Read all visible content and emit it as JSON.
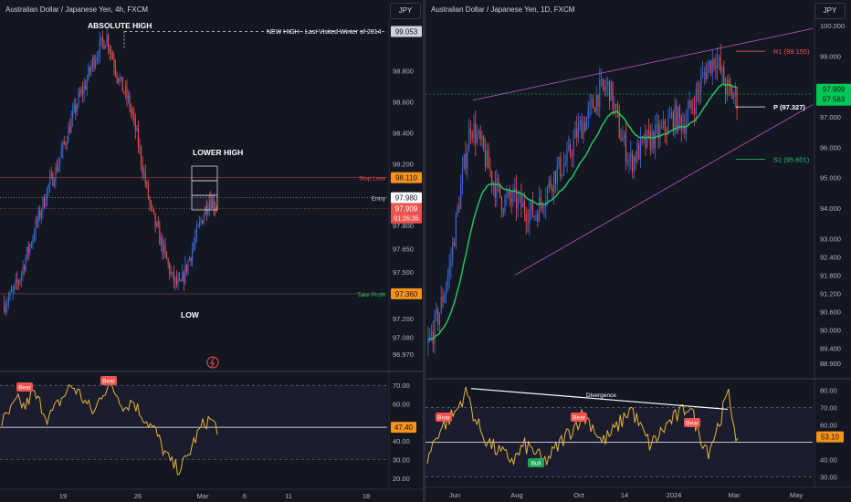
{
  "colors": {
    "bull": "#3f6ee0",
    "bear": "#ef5350",
    "ema": "#22c55e",
    "rsi": "#e5b53a",
    "wedge": "#b04fb7",
    "bg": "#131722"
  },
  "left": {
    "title": "Australian Dollar / Japanese Yen, 4h, FXCM",
    "currency_btn": "JPY",
    "price_ticks": [
      "99.053",
      "98.800",
      "98.600",
      "98.400",
      "98.200",
      "98.000",
      "97.800",
      "97.650",
      "97.500",
      "97.350",
      "97.200",
      "97.080",
      "96.970"
    ],
    "time_ticks": [
      "19",
      "26",
      "Mar",
      "6",
      "11",
      "18"
    ],
    "rsi_ticks": [
      "70.00",
      "60.00",
      "40.00",
      "30.00",
      "20.00"
    ],
    "rsi_value": "47.40",
    "annotations": {
      "absolute_high": "ABSOLUTE HIGH",
      "new_high": "NEW HIGH - Last Visited Winter of 2014",
      "lower_high": "LOWER HIGH",
      "low": "LOW"
    },
    "levels": {
      "high": {
        "label": "99.053"
      },
      "stop_loss": {
        "text": "Stop Loss",
        "label": "98.110"
      },
      "entry": {
        "text": "Entry",
        "label": "97.980"
      },
      "current": {
        "label": "97.909",
        "countdown": "01:26:35"
      },
      "take_profit": {
        "text": "Take Profit",
        "label": "97.360"
      }
    },
    "bear_labels": [
      "Bear",
      "Bear"
    ]
  },
  "right": {
    "title": "Australian Dollar / Japanese Yen, 1D, FXCM",
    "currency_btn": "JPY",
    "price_ticks": [
      "100.000",
      "99.000",
      "98.000",
      "97.000",
      "96.000",
      "95.000",
      "94.000",
      "93.000",
      "92.400",
      "91.800",
      "91.200",
      "90.600",
      "90.000",
      "89.400",
      "88.900"
    ],
    "time_ticks": [
      "Jun",
      "Aug",
      "Oct",
      "14",
      "2024",
      "Mar",
      "May"
    ],
    "rsi_ticks": [
      "80.00",
      "70.00",
      "60.00",
      "50.00",
      "40.00",
      "30.00"
    ],
    "rsi_value": "53.10",
    "pivots": {
      "r1": "R1 (99.155)",
      "p": "P (97.327)",
      "s1": "S1 (95.601)"
    },
    "price_labels": {
      "top": "97.909",
      "bottom": "97.583"
    },
    "divergence": "Divergence",
    "bear_labels": [
      "Bear",
      "Bear",
      "Bear"
    ],
    "bull_label": "Bull"
  },
  "chart_data": [
    {
      "type": "candlestick",
      "title": "Australian Dollar / Japanese Yen, 4h, FXCM",
      "timeframe": "4h",
      "x_ticks": [
        "19",
        "26",
        "Mar",
        "6",
        "11",
        "18"
      ],
      "ylim": [
        96.9,
        99.15
      ],
      "levels": {
        "absolute_high": 99.053,
        "stop_loss": 98.11,
        "entry": 97.98,
        "last": 97.909,
        "take_profit": 97.36
      },
      "close_path": [
        97.3,
        97.35,
        97.45,
        97.6,
        97.75,
        97.9,
        98.05,
        98.15,
        98.3,
        98.45,
        98.6,
        98.7,
        98.85,
        98.95,
        99.02,
        98.85,
        98.7,
        98.6,
        98.4,
        98.15,
        97.9,
        97.75,
        97.6,
        97.45,
        97.4,
        97.55,
        97.7,
        97.85,
        97.98,
        97.92
      ],
      "rsi": {
        "overbought": 70,
        "oversold": 30,
        "mid": 50,
        "last": 47.4
      }
    },
    {
      "type": "candlestick",
      "title": "Australian Dollar / Japanese Yen, 1D, FXCM",
      "timeframe": "1D",
      "x_ticks": [
        "Jun",
        "Aug",
        "Oct",
        "14",
        "2024",
        "Mar",
        "May"
      ],
      "ylim": [
        88.6,
        100.3
      ],
      "pivots": {
        "R1": 99.155,
        "P": 97.327,
        "S1": 95.601
      },
      "close_path": [
        89.5,
        90.5,
        92.0,
        94.5,
        96.8,
        96.0,
        95.0,
        94.2,
        94.3,
        94.0,
        93.8,
        94.5,
        95.2,
        95.5,
        96.5,
        97.0,
        97.8,
        98.0,
        96.5,
        95.5,
        96.0,
        96.3,
        96.5,
        97.0,
        96.8,
        97.5,
        98.5,
        99.0,
        97.9,
        97.58
      ],
      "rsi": {
        "overbought": 70,
        "oversold": 30,
        "last": 53.1
      }
    }
  ]
}
